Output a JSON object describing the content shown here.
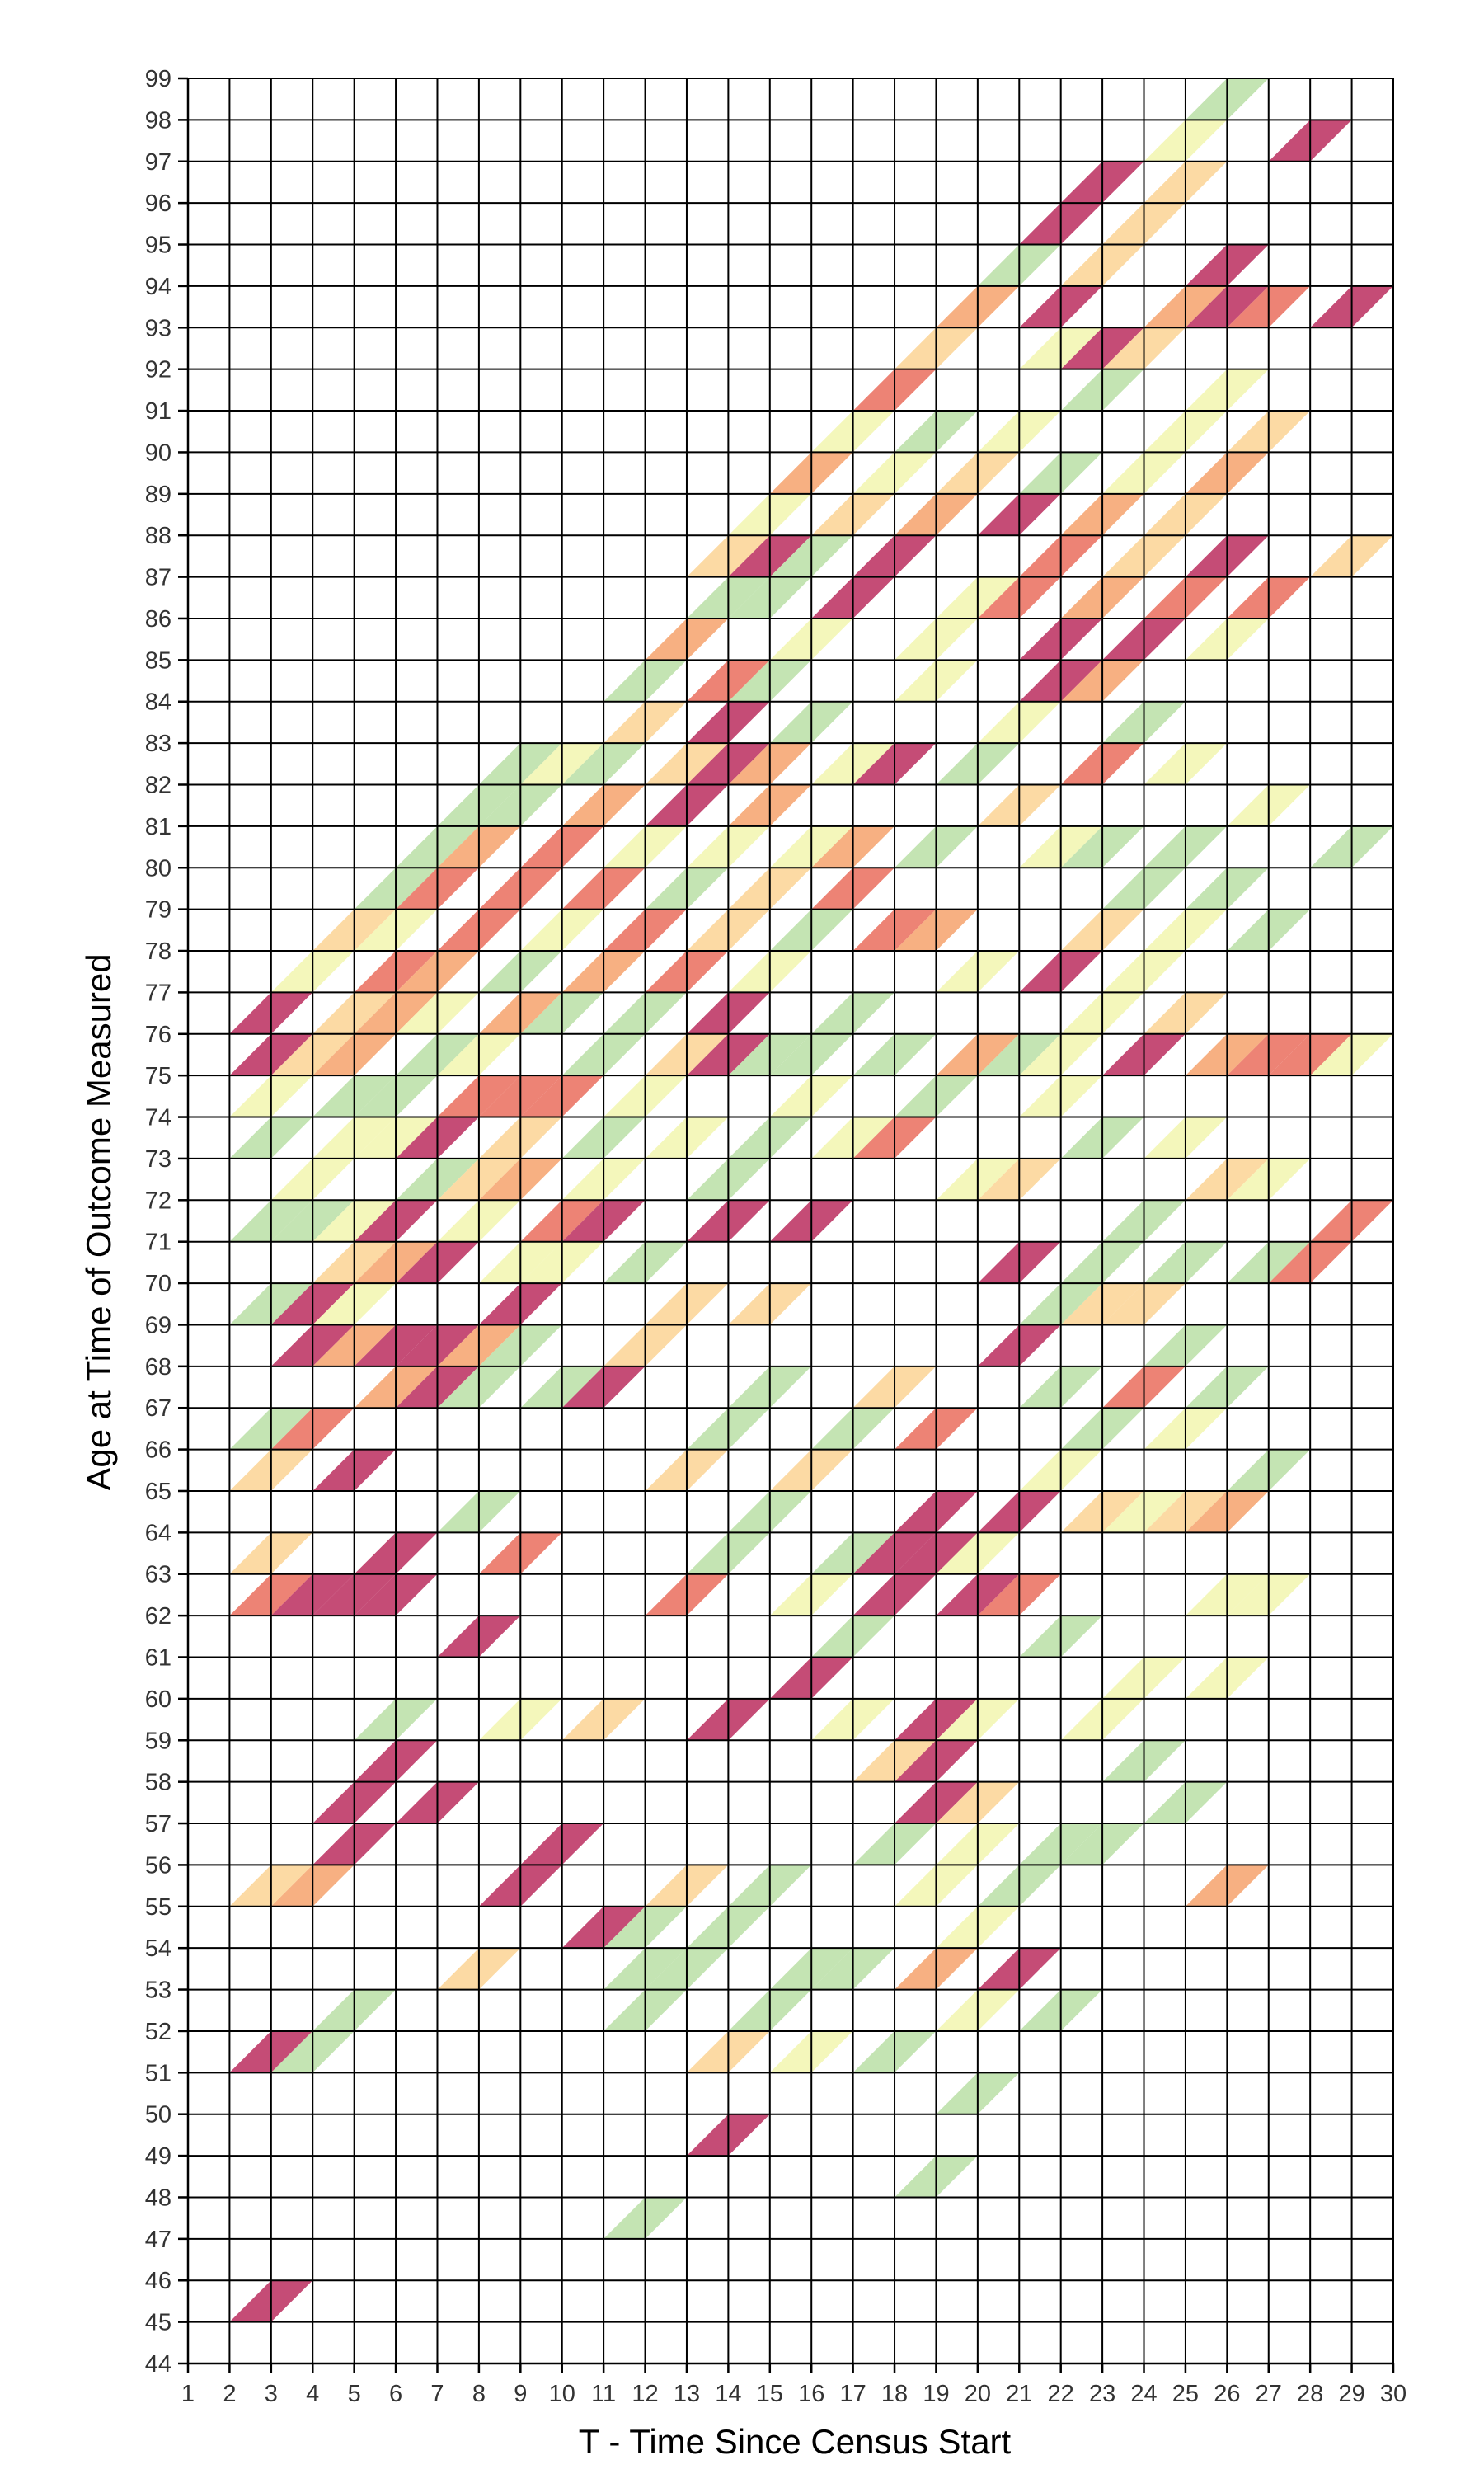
{
  "chart_data": {
    "type": "heatmap",
    "title": "",
    "xlabel": "T - Time Since Census Start",
    "ylabel": "Age at Time of Outcome Measured",
    "xlim": [
      1,
      30
    ],
    "ylim": [
      44,
      99
    ],
    "x_ticks": [
      1,
      2,
      3,
      4,
      5,
      6,
      7,
      8,
      9,
      10,
      11,
      12,
      13,
      14,
      15,
      16,
      17,
      18,
      19,
      20,
      21,
      22,
      23,
      24,
      25,
      26,
      27,
      28,
      29,
      30
    ],
    "y_ticks": [
      44,
      45,
      46,
      47,
      48,
      49,
      50,
      51,
      52,
      53,
      54,
      55,
      56,
      57,
      58,
      59,
      60,
      61,
      62,
      63,
      64,
      65,
      66,
      67,
      68,
      69,
      70,
      71,
      72,
      73,
      74,
      75,
      76,
      77,
      78,
      79,
      80,
      81,
      82,
      83,
      84,
      85,
      86,
      87,
      88,
      89,
      90,
      91,
      92,
      93,
      94,
      95,
      96,
      97,
      98,
      99
    ],
    "grid": true,
    "legend": "none",
    "cell_shape": "parallelogram (cohort diagonal: spans one year in T and one year of age)",
    "color_levels": [
      "#b5194f",
      "#e8604e",
      "#f59a5f",
      "#fbd08b",
      "#f1f5a8",
      "#b3dc9d"
    ],
    "cells": [
      [
        2,
        45,
        0
      ],
      [
        2,
        51,
        0
      ],
      [
        2,
        55,
        3
      ],
      [
        2,
        62,
        1
      ],
      [
        2,
        63,
        3
      ],
      [
        2,
        65,
        3
      ],
      [
        2,
        66,
        5
      ],
      [
        2,
        69,
        5
      ],
      [
        2,
        71,
        5
      ],
      [
        2,
        73,
        5
      ],
      [
        2,
        74,
        4
      ],
      [
        2,
        75,
        0
      ],
      [
        2,
        76,
        0
      ],
      [
        3,
        51,
        5
      ],
      [
        3,
        55,
        2
      ],
      [
        3,
        62,
        0
      ],
      [
        3,
        66,
        1
      ],
      [
        3,
        68,
        0
      ],
      [
        3,
        69,
        0
      ],
      [
        3,
        71,
        5
      ],
      [
        3,
        72,
        4
      ],
      [
        3,
        75,
        3
      ],
      [
        3,
        77,
        4
      ],
      [
        4,
        52,
        5
      ],
      [
        4,
        56,
        0
      ],
      [
        4,
        57,
        0
      ],
      [
        4,
        62,
        0
      ],
      [
        4,
        65,
        0
      ],
      [
        4,
        68,
        2
      ],
      [
        4,
        69,
        4
      ],
      [
        4,
        70,
        3
      ],
      [
        4,
        71,
        4
      ],
      [
        4,
        73,
        4
      ],
      [
        4,
        74,
        5
      ],
      [
        4,
        75,
        2
      ],
      [
        4,
        76,
        3
      ],
      [
        4,
        78,
        3
      ],
      [
        5,
        58,
        0
      ],
      [
        5,
        59,
        5
      ],
      [
        5,
        62,
        0
      ],
      [
        5,
        63,
        0
      ],
      [
        5,
        67,
        2
      ],
      [
        5,
        68,
        0
      ],
      [
        5,
        70,
        2
      ],
      [
        5,
        71,
        0
      ],
      [
        5,
        73,
        4
      ],
      [
        5,
        74,
        5
      ],
      [
        5,
        76,
        2
      ],
      [
        5,
        77,
        1
      ],
      [
        5,
        78,
        4
      ],
      [
        5,
        79,
        5
      ],
      [
        6,
        57,
        0
      ],
      [
        6,
        67,
        0
      ],
      [
        6,
        68,
        0
      ],
      [
        6,
        70,
        0
      ],
      [
        6,
        72,
        5
      ],
      [
        6,
        73,
        0
      ],
      [
        6,
        75,
        5
      ],
      [
        6,
        76,
        4
      ],
      [
        6,
        77,
        2
      ],
      [
        6,
        79,
        1
      ],
      [
        6,
        80,
        5
      ],
      [
        7,
        53,
        3
      ],
      [
        7,
        61,
        0
      ],
      [
        7,
        64,
        5
      ],
      [
        7,
        67,
        5
      ],
      [
        7,
        68,
        2
      ],
      [
        7,
        71,
        4
      ],
      [
        7,
        72,
        3
      ],
      [
        7,
        74,
        1
      ],
      [
        7,
        75,
        4
      ],
      [
        7,
        78,
        1
      ],
      [
        7,
        80,
        2
      ],
      [
        7,
        81,
        5
      ],
      [
        8,
        55,
        0
      ],
      [
        8,
        59,
        4
      ],
      [
        8,
        63,
        1
      ],
      [
        8,
        68,
        5
      ],
      [
        8,
        69,
        0
      ],
      [
        8,
        70,
        4
      ],
      [
        8,
        72,
        2
      ],
      [
        8,
        73,
        3
      ],
      [
        8,
        74,
        1
      ],
      [
        8,
        76,
        2
      ],
      [
        8,
        77,
        5
      ],
      [
        8,
        79,
        1
      ],
      [
        8,
        81,
        5
      ],
      [
        8,
        82,
        5
      ],
      [
        9,
        56,
        0
      ],
      [
        9,
        67,
        5
      ],
      [
        9,
        70,
        4
      ],
      [
        9,
        71,
        1
      ],
      [
        9,
        74,
        1
      ],
      [
        9,
        76,
        5
      ],
      [
        9,
        78,
        4
      ],
      [
        9,
        80,
        1
      ],
      [
        9,
        82,
        4
      ],
      [
        10,
        54,
        0
      ],
      [
        10,
        59,
        3
      ],
      [
        10,
        67,
        0
      ],
      [
        10,
        71,
        0
      ],
      [
        10,
        72,
        4
      ],
      [
        10,
        73,
        5
      ],
      [
        10,
        75,
        5
      ],
      [
        10,
        77,
        2
      ],
      [
        10,
        79,
        1
      ],
      [
        10,
        81,
        2
      ],
      [
        10,
        82,
        5
      ],
      [
        11,
        47,
        5
      ],
      [
        11,
        52,
        5
      ],
      [
        11,
        53,
        5
      ],
      [
        11,
        54,
        5
      ],
      [
        11,
        68,
        3
      ],
      [
        11,
        70,
        5
      ],
      [
        11,
        74,
        4
      ],
      [
        11,
        76,
        5
      ],
      [
        11,
        78,
        1
      ],
      [
        11,
        80,
        4
      ],
      [
        11,
        83,
        3
      ],
      [
        11,
        84,
        5
      ],
      [
        12,
        53,
        5
      ],
      [
        12,
        55,
        3
      ],
      [
        12,
        62,
        1
      ],
      [
        12,
        65,
        3
      ],
      [
        12,
        69,
        3
      ],
      [
        12,
        73,
        4
      ],
      [
        12,
        75,
        3
      ],
      [
        12,
        77,
        1
      ],
      [
        12,
        79,
        5
      ],
      [
        12,
        81,
        0
      ],
      [
        12,
        82,
        3
      ],
      [
        12,
        85,
        2
      ],
      [
        13,
        49,
        0
      ],
      [
        13,
        51,
        3
      ],
      [
        13,
        54,
        5
      ],
      [
        13,
        59,
        0
      ],
      [
        13,
        63,
        5
      ],
      [
        13,
        66,
        5
      ],
      [
        13,
        71,
        0
      ],
      [
        13,
        72,
        5
      ],
      [
        13,
        75,
        0
      ],
      [
        13,
        76,
        0
      ],
      [
        13,
        78,
        3
      ],
      [
        13,
        80,
        4
      ],
      [
        13,
        82,
        0
      ],
      [
        13,
        83,
        0
      ],
      [
        13,
        84,
        1
      ],
      [
        13,
        86,
        5
      ],
      [
        13,
        87,
        3
      ],
      [
        14,
        52,
        5
      ],
      [
        14,
        55,
        5
      ],
      [
        14,
        64,
        5
      ],
      [
        14,
        67,
        5
      ],
      [
        14,
        69,
        3
      ],
      [
        14,
        73,
        5
      ],
      [
        14,
        75,
        5
      ],
      [
        14,
        77,
        4
      ],
      [
        14,
        79,
        3
      ],
      [
        14,
        81,
        2
      ],
      [
        14,
        82,
        2
      ],
      [
        14,
        84,
        5
      ],
      [
        14,
        86,
        5
      ],
      [
        14,
        87,
        0
      ],
      [
        14,
        88,
        4
      ],
      [
        15,
        51,
        4
      ],
      [
        15,
        53,
        5
      ],
      [
        15,
        60,
        0
      ],
      [
        15,
        62,
        4
      ],
      [
        15,
        65,
        3
      ],
      [
        15,
        71,
        0
      ],
      [
        15,
        74,
        4
      ],
      [
        15,
        75,
        5
      ],
      [
        15,
        78,
        5
      ],
      [
        15,
        80,
        4
      ],
      [
        15,
        83,
        5
      ],
      [
        15,
        85,
        4
      ],
      [
        15,
        87,
        5
      ],
      [
        15,
        89,
        2
      ],
      [
        16,
        53,
        5
      ],
      [
        16,
        59,
        4
      ],
      [
        16,
        61,
        5
      ],
      [
        16,
        63,
        5
      ],
      [
        16,
        66,
        5
      ],
      [
        16,
        73,
        4
      ],
      [
        16,
        76,
        5
      ],
      [
        16,
        79,
        1
      ],
      [
        16,
        80,
        2
      ],
      [
        16,
        82,
        4
      ],
      [
        16,
        86,
        0
      ],
      [
        16,
        88,
        3
      ],
      [
        16,
        90,
        4
      ],
      [
        17,
        51,
        5
      ],
      [
        17,
        56,
        5
      ],
      [
        17,
        58,
        3
      ],
      [
        17,
        62,
        0
      ],
      [
        17,
        63,
        0
      ],
      [
        17,
        67,
        3
      ],
      [
        17,
        73,
        1
      ],
      [
        17,
        75,
        5
      ],
      [
        17,
        78,
        1
      ],
      [
        17,
        82,
        0
      ],
      [
        17,
        87,
        0
      ],
      [
        17,
        89,
        4
      ],
      [
        17,
        91,
        1
      ],
      [
        18,
        48,
        5
      ],
      [
        18,
        53,
        2
      ],
      [
        18,
        55,
        4
      ],
      [
        18,
        57,
        0
      ],
      [
        18,
        58,
        0
      ],
      [
        18,
        59,
        0
      ],
      [
        18,
        63,
        0
      ],
      [
        18,
        64,
        0
      ],
      [
        18,
        66,
        1
      ],
      [
        18,
        74,
        5
      ],
      [
        18,
        78,
        2
      ],
      [
        18,
        80,
        5
      ],
      [
        18,
        84,
        4
      ],
      [
        18,
        85,
        4
      ],
      [
        18,
        88,
        2
      ],
      [
        18,
        90,
        5
      ],
      [
        18,
        92,
        3
      ],
      [
        19,
        50,
        5
      ],
      [
        19,
        52,
        4
      ],
      [
        19,
        54,
        4
      ],
      [
        19,
        56,
        4
      ],
      [
        19,
        57,
        3
      ],
      [
        19,
        59,
        4
      ],
      [
        19,
        62,
        0
      ],
      [
        19,
        63,
        4
      ],
      [
        19,
        72,
        4
      ],
      [
        19,
        75,
        2
      ],
      [
        19,
        77,
        4
      ],
      [
        19,
        82,
        5
      ],
      [
        19,
        86,
        4
      ],
      [
        19,
        89,
        3
      ],
      [
        19,
        93,
        2
      ],
      [
        20,
        53,
        0
      ],
      [
        20,
        55,
        5
      ],
      [
        20,
        62,
        1
      ],
      [
        20,
        64,
        0
      ],
      [
        20,
        68,
        0
      ],
      [
        20,
        70,
        0
      ],
      [
        20,
        72,
        3
      ],
      [
        20,
        75,
        5
      ],
      [
        20,
        81,
        3
      ],
      [
        20,
        83,
        4
      ],
      [
        20,
        86,
        1
      ],
      [
        20,
        88,
        0
      ],
      [
        20,
        90,
        4
      ],
      [
        20,
        94,
        5
      ],
      [
        21,
        52,
        5
      ],
      [
        21,
        56,
        5
      ],
      [
        21,
        61,
        5
      ],
      [
        21,
        65,
        4
      ],
      [
        21,
        67,
        5
      ],
      [
        21,
        69,
        5
      ],
      [
        21,
        74,
        4
      ],
      [
        21,
        75,
        4
      ],
      [
        21,
        77,
        0
      ],
      [
        21,
        80,
        4
      ],
      [
        21,
        84,
        0
      ],
      [
        21,
        85,
        0
      ],
      [
        21,
        87,
        1
      ],
      [
        21,
        89,
        5
      ],
      [
        21,
        92,
        4
      ],
      [
        21,
        93,
        0
      ],
      [
        21,
        95,
        0
      ],
      [
        22,
        56,
        5
      ],
      [
        22,
        59,
        4
      ],
      [
        22,
        64,
        3
      ],
      [
        22,
        66,
        5
      ],
      [
        22,
        69,
        3
      ],
      [
        22,
        70,
        5
      ],
      [
        22,
        73,
        5
      ],
      [
        22,
        76,
        4
      ],
      [
        22,
        78,
        3
      ],
      [
        22,
        80,
        5
      ],
      [
        22,
        82,
        1
      ],
      [
        22,
        84,
        2
      ],
      [
        22,
        86,
        2
      ],
      [
        22,
        88,
        2
      ],
      [
        22,
        91,
        5
      ],
      [
        22,
        92,
        0
      ],
      [
        22,
        94,
        3
      ],
      [
        22,
        96,
        0
      ],
      [
        23,
        58,
        5
      ],
      [
        23,
        60,
        4
      ],
      [
        23,
        64,
        4
      ],
      [
        23,
        67,
        1
      ],
      [
        23,
        69,
        3
      ],
      [
        23,
        71,
        5
      ],
      [
        23,
        75,
        0
      ],
      [
        23,
        77,
        4
      ],
      [
        23,
        79,
        5
      ],
      [
        23,
        83,
        5
      ],
      [
        23,
        85,
        0
      ],
      [
        23,
        87,
        3
      ],
      [
        23,
        89,
        4
      ],
      [
        23,
        92,
        3
      ],
      [
        23,
        95,
        3
      ],
      [
        24,
        57,
        5
      ],
      [
        24,
        64,
        3
      ],
      [
        24,
        66,
        4
      ],
      [
        24,
        68,
        5
      ],
      [
        24,
        70,
        5
      ],
      [
        24,
        73,
        4
      ],
      [
        24,
        76,
        3
      ],
      [
        24,
        78,
        4
      ],
      [
        24,
        80,
        5
      ],
      [
        24,
        82,
        4
      ],
      [
        24,
        86,
        1
      ],
      [
        24,
        88,
        3
      ],
      [
        24,
        90,
        4
      ],
      [
        24,
        93,
        2
      ],
      [
        24,
        96,
        3
      ],
      [
        24,
        97,
        4
      ],
      [
        25,
        55,
        2
      ],
      [
        25,
        60,
        4
      ],
      [
        25,
        62,
        4
      ],
      [
        25,
        64,
        2
      ],
      [
        25,
        67,
        5
      ],
      [
        25,
        72,
        3
      ],
      [
        25,
        75,
        2
      ],
      [
        25,
        79,
        5
      ],
      [
        25,
        85,
        4
      ],
      [
        25,
        87,
        0
      ],
      [
        25,
        89,
        2
      ],
      [
        25,
        91,
        4
      ],
      [
        25,
        93,
        0
      ],
      [
        25,
        94,
        0
      ],
      [
        25,
        98,
        5
      ],
      [
        26,
        62,
        4
      ],
      [
        26,
        65,
        5
      ],
      [
        26,
        70,
        5
      ],
      [
        26,
        72,
        4
      ],
      [
        26,
        75,
        1
      ],
      [
        26,
        78,
        5
      ],
      [
        26,
        81,
        4
      ],
      [
        26,
        86,
        1
      ],
      [
        26,
        90,
        3
      ],
      [
        26,
        93,
        1
      ],
      [
        27,
        70,
        1
      ],
      [
        27,
        75,
        1
      ],
      [
        27,
        97,
        0
      ],
      [
        28,
        71,
        1
      ],
      [
        28,
        75,
        4
      ],
      [
        28,
        80,
        5
      ],
      [
        28,
        87,
        3
      ],
      [
        28,
        93,
        0
      ]
    ]
  }
}
